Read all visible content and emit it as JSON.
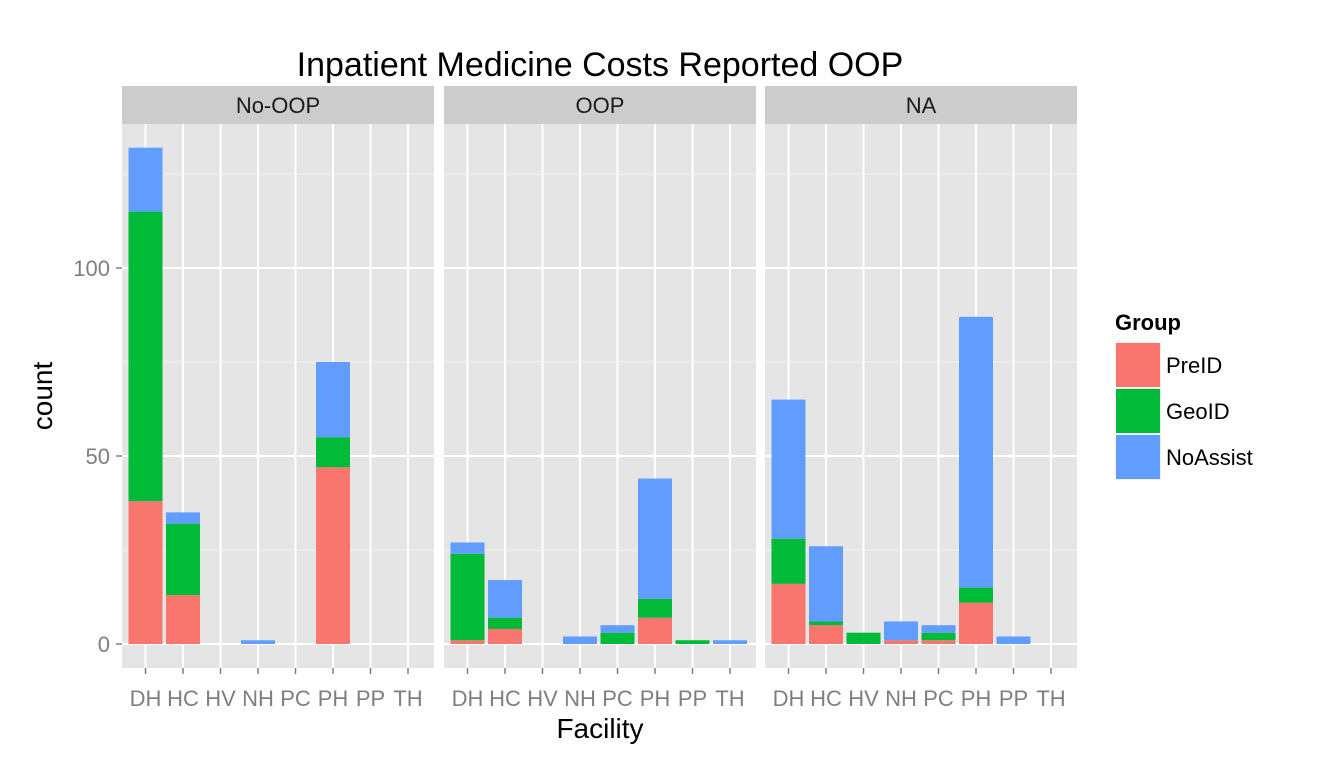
{
  "chart_data": {
    "type": "bar",
    "stacked": true,
    "title": "Inpatient Medicine Costs Reported OOP",
    "xlabel": "Facility",
    "ylabel": "count",
    "ylim": [
      0,
      138
    ],
    "yticks": [
      0,
      50,
      100
    ],
    "grid": true,
    "legend_title": "Group",
    "legend_position": "right",
    "categories": [
      "DH",
      "HC",
      "HV",
      "NH",
      "PC",
      "PH",
      "PP",
      "TH"
    ],
    "series_colors": [
      "#F8766D",
      "#00BA38",
      "#619CFF"
    ],
    "series_names": [
      "PreID",
      "GeoID",
      "NoAssist"
    ],
    "panels": [
      {
        "name": "No-OOP",
        "series": [
          {
            "name": "PreID",
            "values": [
              38,
              13,
              0,
              0,
              0,
              47,
              0,
              0
            ]
          },
          {
            "name": "GeoID",
            "values": [
              77,
              19,
              0,
              0,
              0,
              8,
              0,
              0
            ]
          },
          {
            "name": "NoAssist",
            "values": [
              17,
              3,
              0,
              1,
              0,
              20,
              0,
              0
            ]
          }
        ]
      },
      {
        "name": "OOP",
        "series": [
          {
            "name": "PreID",
            "values": [
              1,
              4,
              0,
              0,
              0,
              7,
              0,
              0
            ]
          },
          {
            "name": "GeoID",
            "values": [
              23,
              3,
              0,
              0,
              3,
              5,
              1,
              0
            ]
          },
          {
            "name": "NoAssist",
            "values": [
              3,
              10,
              0,
              2,
              2,
              32,
              0,
              1
            ]
          }
        ]
      },
      {
        "name": "NA",
        "series": [
          {
            "name": "PreID",
            "values": [
              16,
              5,
              0,
              1,
              1,
              11,
              0,
              0
            ]
          },
          {
            "name": "GeoID",
            "values": [
              12,
              1,
              3,
              0,
              2,
              4,
              0,
              0
            ]
          },
          {
            "name": "NoAssist",
            "values": [
              37,
              20,
              0,
              5,
              2,
              72,
              2,
              0
            ]
          }
        ]
      }
    ]
  }
}
